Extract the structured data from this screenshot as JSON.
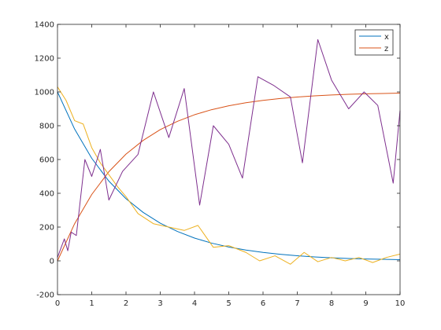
{
  "chart_data": {
    "type": "line",
    "title": "",
    "xlabel": "",
    "ylabel": "",
    "xlim": [
      0,
      10
    ],
    "ylim": [
      -200,
      1400
    ],
    "xticks": [
      0,
      1,
      2,
      3,
      4,
      5,
      6,
      7,
      8,
      9,
      10
    ],
    "yticks": [
      -200,
      0,
      200,
      400,
      600,
      800,
      1000,
      1200,
      1400
    ],
    "grid": false,
    "legend_position": "top-right",
    "series": [
      {
        "name": "x",
        "color": "#0072bd",
        "in_legend": true,
        "x": [
          0,
          0.5,
          1,
          1.5,
          2,
          2.5,
          3,
          3.5,
          4,
          4.5,
          5,
          5.5,
          6,
          6.5,
          7,
          7.5,
          8,
          8.5,
          9,
          9.5,
          10
        ],
        "y": [
          1000,
          780,
          607,
          472,
          368,
          287,
          223,
          174,
          135,
          105,
          82,
          64,
          50,
          39,
          30,
          23,
          18,
          14,
          11,
          9,
          7
        ]
      },
      {
        "name": "z",
        "color": "#d95319",
        "in_legend": true,
        "x": [
          0,
          0.5,
          1,
          1.5,
          2,
          2.5,
          3,
          3.5,
          4,
          4.5,
          5,
          5.5,
          6,
          6.5,
          7,
          7.5,
          8,
          8.5,
          9,
          9.5,
          10
        ],
        "y": [
          0,
          220,
          393,
          528,
          632,
          713,
          777,
          826,
          865,
          895,
          918,
          936,
          950,
          961,
          970,
          977,
          982,
          986,
          989,
          991,
          993
        ]
      },
      {
        "name": "",
        "color": "#edb120",
        "in_legend": false,
        "x": [
          0,
          0.25,
          0.5,
          0.75,
          1,
          1.25,
          1.5,
          1.75,
          2,
          2.35,
          2.8,
          3.25,
          3.7,
          4.1,
          4.55,
          5.0,
          5.5,
          5.9,
          6.35,
          6.8,
          7.2,
          7.6,
          8.0,
          8.4,
          8.8,
          9.2,
          9.6,
          10
        ],
        "y": [
          1030,
          950,
          830,
          810,
          670,
          580,
          510,
          440,
          380,
          280,
          220,
          200,
          180,
          210,
          80,
          90,
          50,
          0,
          30,
          -20,
          50,
          -5,
          20,
          0,
          20,
          -10,
          20,
          40
        ]
      },
      {
        "name": "",
        "color": "#7e2f8e",
        "in_legend": false,
        "x": [
          0,
          0.2,
          0.3,
          0.4,
          0.55,
          0.8,
          1.0,
          1.25,
          1.5,
          1.9,
          2.35,
          2.8,
          3.25,
          3.7,
          4.15,
          4.55,
          5.0,
          5.4,
          5.85,
          6.3,
          6.8,
          7.15,
          7.6,
          8.0,
          8.5,
          8.95,
          9.35,
          9.8,
          10
        ],
        "y": [
          20,
          130,
          60,
          170,
          150,
          600,
          500,
          660,
          360,
          530,
          630,
          1000,
          730,
          1020,
          330,
          800,
          690,
          490,
          1090,
          1040,
          970,
          580,
          1310,
          1070,
          900,
          1000,
          920,
          460,
          890
        ]
      }
    ]
  }
}
